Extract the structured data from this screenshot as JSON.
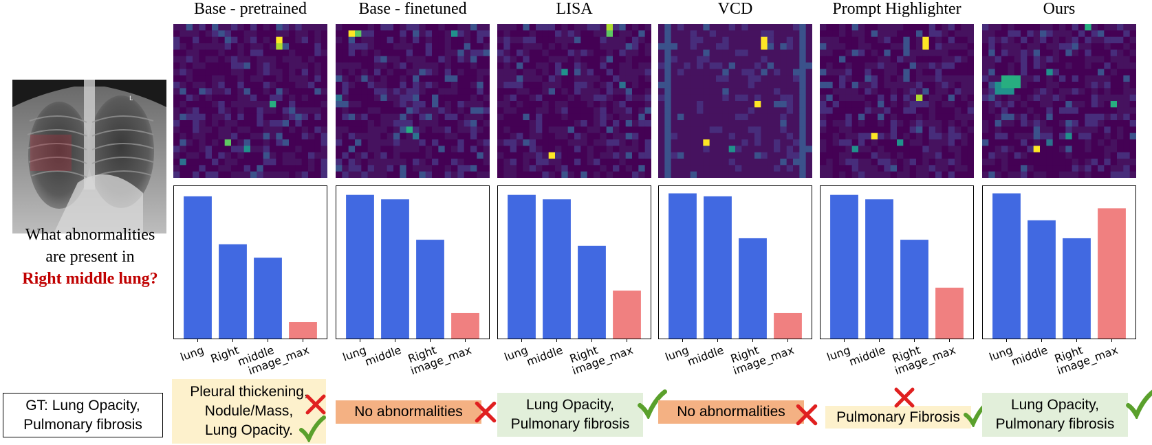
{
  "question": {
    "line1": "What abnormalities",
    "line2": "are present in",
    "highlight": "Right middle lung?"
  },
  "xray": {
    "marker": "L"
  },
  "ground_truth": {
    "line1": "GT: Lung Opacity,",
    "line2": "Pulmonary fibrosis"
  },
  "colors": {
    "token_bar": "#4169e1",
    "image_bar": "#f08080",
    "correct": "#5aa02c",
    "wrong": "#e02020",
    "answer_correct_bg": "#e2efda",
    "answer_partial_bg": "#fdf1cc",
    "answer_wrong_bg": "#f4b183"
  },
  "chart_data": [
    {
      "type": "bar",
      "title": "Base - pretrained",
      "categories": [
        "lung",
        "Right",
        "middle",
        "image_max"
      ],
      "values": [
        0.95,
        0.63,
        0.54,
        0.11
      ],
      "ylim": [
        0,
        1
      ],
      "answer": {
        "lines": [
          "Pleural thickening,",
          "Nodule/Mass,",
          "Lung Opacity."
        ],
        "verdict": "partial"
      }
    },
    {
      "type": "bar",
      "title": "Base - finetuned",
      "categories": [
        "lung",
        "middle",
        "Right",
        "image_max"
      ],
      "values": [
        0.96,
        0.93,
        0.66,
        0.17
      ],
      "ylim": [
        0,
        1
      ],
      "answer": {
        "lines": [
          "No abnormalities"
        ],
        "verdict": "wrong"
      }
    },
    {
      "type": "bar",
      "title": "LISA",
      "categories": [
        "lung",
        "middle",
        "Right",
        "image_max"
      ],
      "values": [
        0.96,
        0.93,
        0.62,
        0.32
      ],
      "ylim": [
        0,
        1
      ],
      "answer": {
        "lines": [
          "Lung Opacity,",
          "Pulmonary fibrosis"
        ],
        "verdict": "correct"
      }
    },
    {
      "type": "bar",
      "title": "VCD",
      "categories": [
        "lung",
        "middle",
        "Right",
        "image_max"
      ],
      "values": [
        0.97,
        0.95,
        0.67,
        0.17
      ],
      "ylim": [
        0,
        1
      ],
      "answer": {
        "lines": [
          "No abnormalities"
        ],
        "verdict": "wrong"
      }
    },
    {
      "type": "bar",
      "title": "Prompt Highlighter",
      "categories": [
        "lung",
        "middle",
        "Right",
        "image_max"
      ],
      "values": [
        0.96,
        0.93,
        0.66,
        0.34
      ],
      "ylim": [
        0,
        1
      ],
      "answer": {
        "lines": [
          "Pulmonary Fibrosis"
        ],
        "verdict": "partial"
      }
    },
    {
      "type": "bar",
      "title": "Ours",
      "categories": [
        "lung",
        "middle",
        "Right",
        "image_max"
      ],
      "values": [
        0.97,
        0.79,
        0.67,
        0.87
      ],
      "ylim": [
        0,
        1
      ],
      "answer": {
        "lines": [
          "Lung Opacity,",
          "Pulmonary fibrosis"
        ],
        "verdict": "correct"
      }
    }
  ]
}
